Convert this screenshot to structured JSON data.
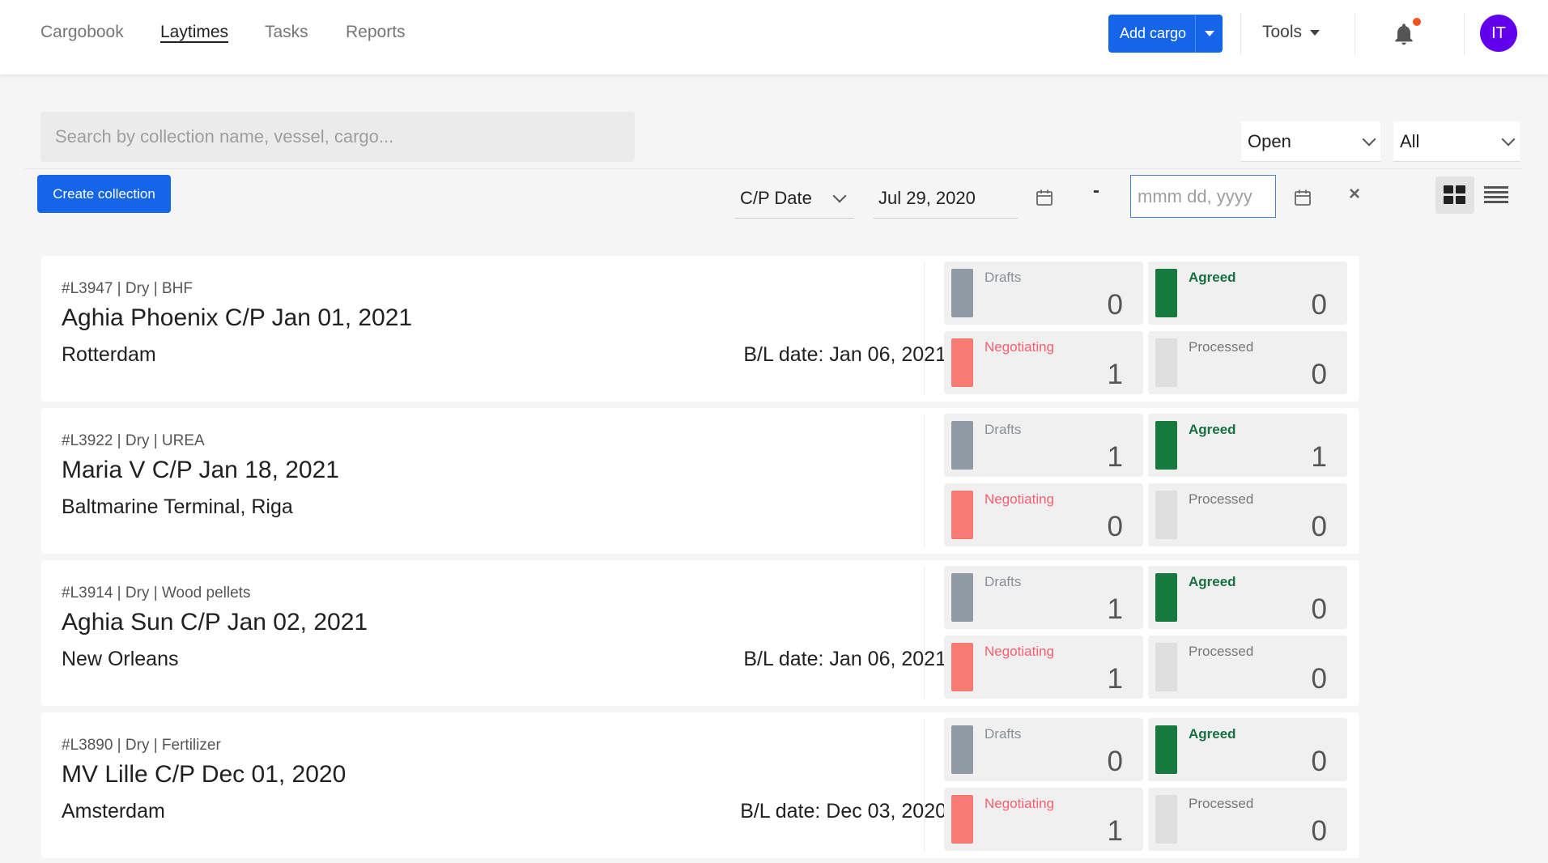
{
  "nav": {
    "links": [
      "Cargobook",
      "Laytimes",
      "Tasks",
      "Reports"
    ],
    "add_cargo": "Add cargo",
    "tools": "Tools",
    "avatar": "IT"
  },
  "filters": {
    "search_placeholder": "Search by collection name, vessel, cargo...",
    "status_select": "Open",
    "type_select": "All",
    "create_collection": "Create collection",
    "date_type": "C/P Date",
    "date_from": "Jul 29, 2020",
    "dash": "-",
    "date_to_placeholder": "mmm dd, yyyy",
    "clear": "×"
  },
  "colors": {
    "drafts": "#909aa3",
    "negotiating": "#f77b72",
    "agreed": "#167a3e",
    "processed": "#dedede",
    "primary": "#1565e8"
  },
  "labels": {
    "drafts": "Drafts",
    "negotiating": "Negotiating",
    "agreed": "Agreed",
    "processed": "Processed"
  },
  "collections": [
    {
      "meta": "#L3947 | Dry | BHF",
      "title": "Aghia Phoenix C/P Jan 01, 2021",
      "port": "Rotterdam",
      "bl": "B/L date: Jan 06, 2021",
      "drafts": "0",
      "agreed": "0",
      "negotiating": "1",
      "processed": "0"
    },
    {
      "meta": "#L3922 | Dry | UREA",
      "title": "Maria V C/P Jan 18, 2021",
      "port": "Baltmarine Terminal, Riga",
      "bl": "",
      "drafts": "1",
      "agreed": "1",
      "negotiating": "0",
      "processed": "0"
    },
    {
      "meta": "#L3914 | Dry | Wood pellets",
      "title": "Aghia Sun C/P Jan 02, 2021",
      "port": "New Orleans",
      "bl": "B/L date: Jan 06, 2021",
      "drafts": "1",
      "agreed": "0",
      "negotiating": "1",
      "processed": "0"
    },
    {
      "meta": "#L3890 | Dry | Fertilizer",
      "title": "MV Lille C/P Dec 01, 2020",
      "port": "Amsterdam",
      "bl": "B/L date: Dec 03, 2020",
      "drafts": "0",
      "agreed": "0",
      "negotiating": "1",
      "processed": "0"
    }
  ]
}
